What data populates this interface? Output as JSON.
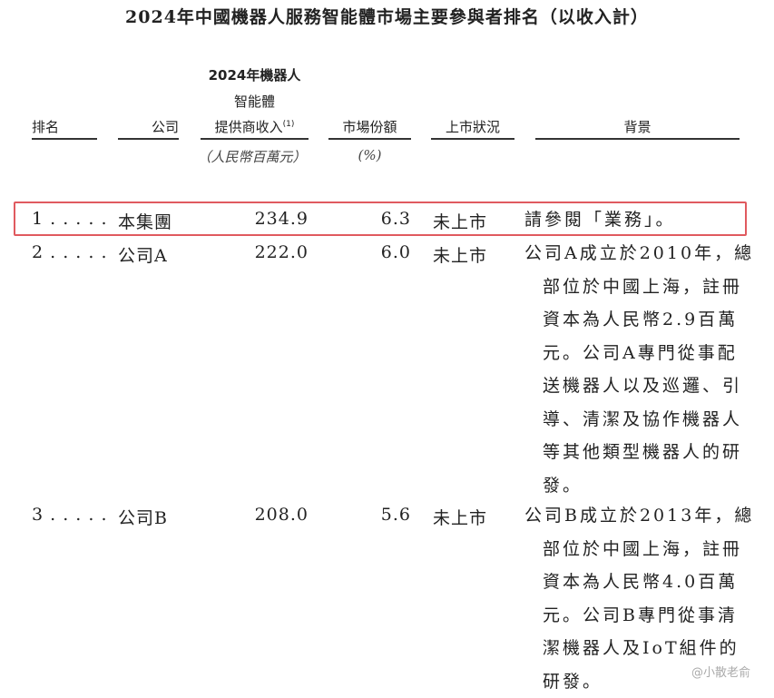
{
  "title": "2024年中國機器人服務智能體市場主要參與者排名（以收入計）",
  "headers": {
    "rank": "排名",
    "company": "公司",
    "revenue_line1": "2024年機器人",
    "revenue_line2": "智能體",
    "revenue_line3": "提供商收入",
    "revenue_note": "(1)",
    "revenue_unit": "（人民幣百萬元）",
    "share": "市場份額",
    "share_unit": "(%)",
    "listing": "上市狀況",
    "background": "背景"
  },
  "rows": [
    {
      "rank": "1 . . . . .",
      "company": "本集團",
      "revenue": "234.9",
      "share": "6.3",
      "listing": "未上市",
      "background": [
        "請參閱「業務」。"
      ],
      "highlighted": true
    },
    {
      "rank": "2 . . . . .",
      "company": "公司A",
      "revenue": "222.0",
      "share": "6.0",
      "listing": "未上市",
      "background": [
        "公司A成立於2010年，總",
        "部位於中國上海，註冊",
        "資本為人民幣2.9百萬",
        "元。公司A專門從事配",
        "送機器人以及巡邏、引",
        "導、清潔及協作機器人",
        "等其他類型機器人的研",
        "發。"
      ]
    },
    {
      "rank": "3 . . . . .",
      "company": "公司B",
      "revenue": "208.0",
      "share": "5.6",
      "listing": "未上市",
      "background": [
        "公司B成立於2013年，總",
        "部位於中國上海，註冊",
        "資本為人民幣4.0百萬",
        "元。公司B專門從事清",
        "潔機器人及IoT組件的",
        "研發。"
      ]
    }
  ],
  "highlight_color": "#e05a5f",
  "watermark": "@小散老俞"
}
